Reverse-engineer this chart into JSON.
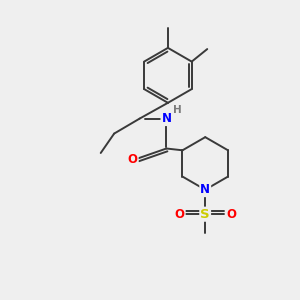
{
  "background_color": "#efefef",
  "bond_color": "#3a3a3a",
  "atom_colors": {
    "N": "#0000ff",
    "O": "#ff0000",
    "S": "#cccc00",
    "H": "#7a7a7a",
    "C": "#3a3a3a"
  },
  "figsize": [
    3.0,
    3.0
  ],
  "dpi": 100
}
